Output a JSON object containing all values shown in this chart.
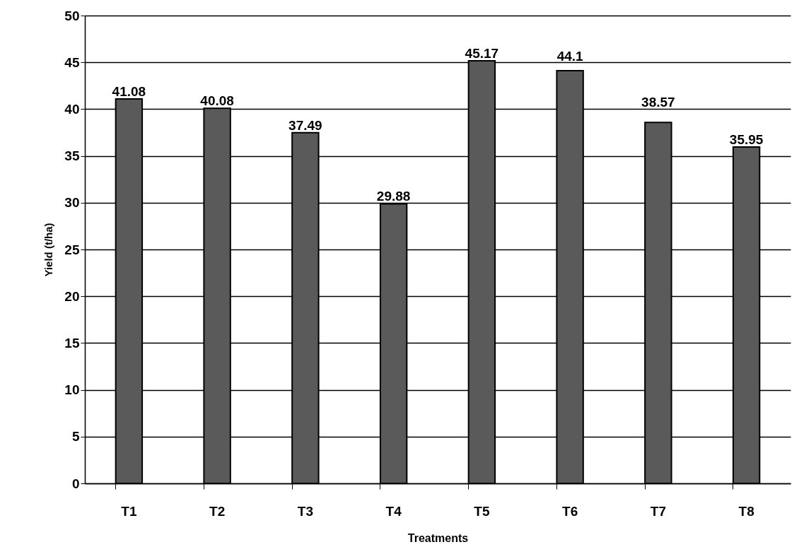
{
  "chart_data": {
    "type": "bar",
    "xlabel": "Treatments",
    "ylabel": "Yield (t/ha)",
    "categories": [
      "T1",
      "T2",
      "T3",
      "T4",
      "T5",
      "T6",
      "T7",
      "T8"
    ],
    "values": [
      41.08,
      40.08,
      37.49,
      29.88,
      45.17,
      44.1,
      38.57,
      35.95
    ],
    "color": "#5a5a5a",
    "ylim": [
      0,
      50
    ],
    "yticks": [
      0,
      5,
      10,
      15,
      20,
      25,
      30,
      35,
      40,
      45,
      50
    ],
    "grid": "y",
    "data_labels": true
  }
}
